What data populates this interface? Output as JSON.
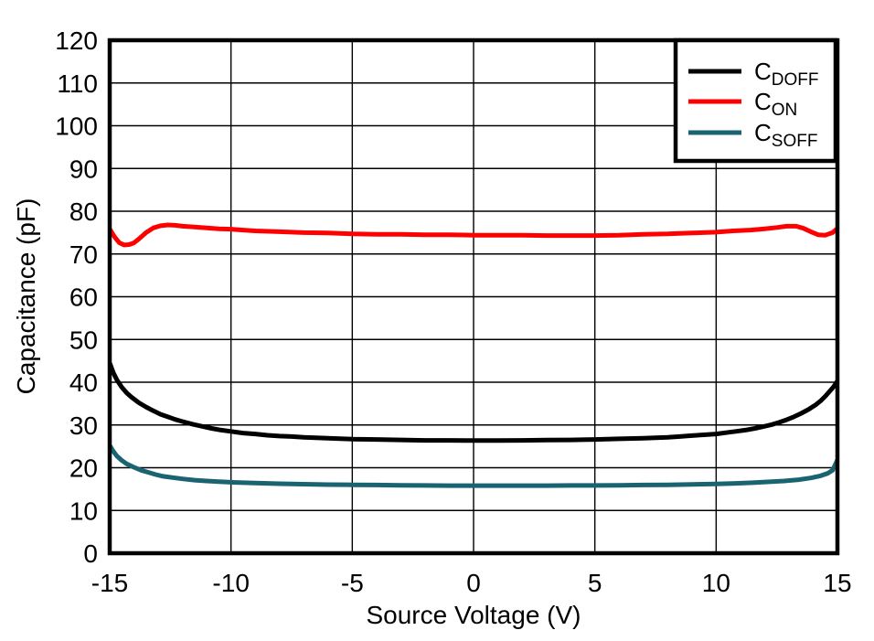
{
  "chart_data": {
    "type": "line",
    "title": "",
    "xlabel": "Source Voltage (V)",
    "ylabel": "Capacitance (pF)",
    "xlim": [
      -15,
      15
    ],
    "ylim": [
      0,
      120
    ],
    "x_ticks": [
      -15,
      -10,
      -5,
      0,
      5,
      10,
      15
    ],
    "y_ticks": [
      0,
      10,
      20,
      30,
      40,
      50,
      60,
      70,
      80,
      90,
      100,
      110,
      120
    ],
    "grid": true,
    "legend_position": "top-right",
    "background_color": "#ffffff",
    "axis_color": "#000000",
    "grid_color": "#000000",
    "series": [
      {
        "name": "CDOFF",
        "label_main": "C",
        "label_sub": "DOFF",
        "color": "#000000",
        "x": [
          -15,
          -14.85,
          -14.7,
          -14.5,
          -14.3,
          -14.1,
          -13.8,
          -13.5,
          -13.2,
          -12.9,
          -12.6,
          -12.3,
          -12,
          -11.6,
          -11.2,
          -10.8,
          -10.4,
          -10,
          -9.5,
          -9,
          -8.5,
          -8,
          -7.5,
          -7,
          -6,
          -5,
          -4,
          -3,
          -2,
          -1,
          0,
          1,
          2,
          3,
          4,
          5,
          6,
          7,
          7.5,
          8,
          8.5,
          9,
          9.5,
          10,
          10.4,
          10.8,
          11.2,
          11.6,
          12,
          12.3,
          12.6,
          12.9,
          13.2,
          13.5,
          13.8,
          14.1,
          14.3,
          14.5,
          14.7,
          14.85,
          15
        ],
        "y": [
          44.5,
          42.2,
          40.5,
          38.8,
          37.5,
          36.5,
          35.2,
          34.2,
          33.3,
          32.5,
          31.9,
          31.3,
          30.8,
          30.2,
          29.7,
          29.2,
          28.8,
          28.5,
          28.1,
          27.9,
          27.6,
          27.4,
          27.3,
          27.1,
          26.9,
          26.7,
          26.6,
          26.5,
          26.4,
          26.4,
          26.35,
          26.35,
          26.4,
          26.45,
          26.5,
          26.6,
          26.75,
          26.9,
          27.0,
          27.1,
          27.3,
          27.5,
          27.7,
          27.9,
          28.2,
          28.5,
          28.8,
          29.2,
          29.7,
          30.1,
          30.6,
          31.2,
          31.9,
          32.7,
          33.6,
          34.7,
          35.6,
          36.7,
          38.0,
          39.0,
          40.3
        ]
      },
      {
        "name": "CON",
        "label_main": "C",
        "label_sub": "ON",
        "color": "#ff0000",
        "x": [
          -15,
          -14.8,
          -14.6,
          -14.4,
          -14.2,
          -14,
          -13.8,
          -13.5,
          -13.2,
          -12.9,
          -12.6,
          -12.3,
          -12,
          -11.5,
          -11,
          -10.5,
          -10,
          -9.5,
          -9,
          -8,
          -7,
          -6,
          -5,
          -4,
          -3,
          -2,
          -1,
          0,
          1,
          2,
          3,
          4,
          5,
          6,
          7,
          8,
          9,
          10,
          10.7,
          11.4,
          12,
          12.5,
          12.9,
          13.3,
          13.6,
          13.9,
          14.2,
          14.5,
          14.8,
          15
        ],
        "y": [
          75.8,
          74.0,
          72.6,
          72.1,
          72.2,
          72.6,
          73.5,
          75.0,
          76.1,
          76.6,
          76.8,
          76.7,
          76.5,
          76.3,
          76.1,
          75.9,
          75.8,
          75.6,
          75.4,
          75.2,
          75.0,
          74.9,
          74.7,
          74.6,
          74.6,
          74.5,
          74.5,
          74.4,
          74.4,
          74.4,
          74.3,
          74.3,
          74.3,
          74.4,
          74.6,
          74.7,
          74.9,
          75.1,
          75.4,
          75.6,
          75.9,
          76.2,
          76.5,
          76.5,
          76.0,
          75.2,
          74.5,
          74.4,
          75.0,
          76.0
        ]
      },
      {
        "name": "CSOFF",
        "label_main": "C",
        "label_sub": "SOFF",
        "color": "#1A6370",
        "x": [
          -15,
          -14.85,
          -14.7,
          -14.5,
          -14.3,
          -14,
          -13.7,
          -13.4,
          -13.1,
          -12.8,
          -12.4,
          -12,
          -11.5,
          -11,
          -10.5,
          -10,
          -9,
          -8,
          -7,
          -6,
          -5,
          -4,
          -3,
          -2,
          -1,
          0,
          1,
          2,
          3,
          4,
          5,
          6,
          7,
          8,
          9,
          10,
          10.8,
          11.5,
          12.2,
          12.8,
          13.4,
          13.9,
          14.3,
          14.6,
          14.8,
          15
        ],
        "y": [
          25.2,
          23.8,
          22.7,
          21.7,
          20.9,
          20.1,
          19.4,
          18.9,
          18.4,
          18.0,
          17.7,
          17.4,
          17.1,
          16.9,
          16.75,
          16.6,
          16.4,
          16.25,
          16.15,
          16.05,
          16.0,
          15.95,
          15.9,
          15.85,
          15.8,
          15.8,
          15.8,
          15.8,
          15.8,
          15.85,
          15.85,
          15.9,
          15.95,
          16.0,
          16.1,
          16.2,
          16.35,
          16.5,
          16.7,
          16.9,
          17.2,
          17.6,
          18.1,
          18.7,
          19.4,
          21.8
        ]
      }
    ]
  }
}
